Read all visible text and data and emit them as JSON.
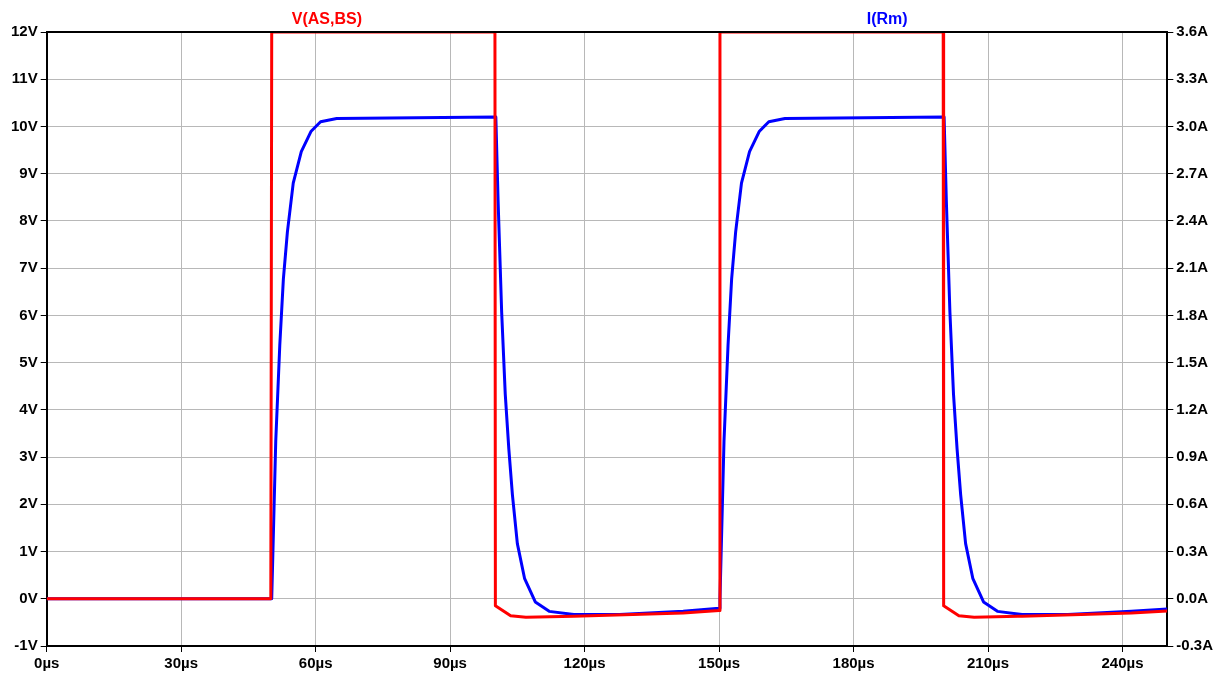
{
  "chart_data": {
    "type": "line",
    "legend": "top",
    "grid": true,
    "marker": "none",
    "line_style": "solid",
    "xlim": [
      0,
      250
    ],
    "xticks": [
      {
        "value": 0,
        "label": "0µs"
      },
      {
        "value": 30,
        "label": "30µs"
      },
      {
        "value": 60,
        "label": "60µs"
      },
      {
        "value": 90,
        "label": "90µs"
      },
      {
        "value": 120,
        "label": "120µs"
      },
      {
        "value": 150,
        "label": "150µs"
      },
      {
        "value": 180,
        "label": "180µs"
      },
      {
        "value": 210,
        "label": "210µs"
      },
      {
        "value": 240,
        "label": "240µs"
      }
    ],
    "ylim": [
      -1,
      12
    ],
    "yticks": [
      {
        "value": -1,
        "label": "-1V"
      },
      {
        "value": 0,
        "label": "0V"
      },
      {
        "value": 1,
        "label": "1V"
      },
      {
        "value": 2,
        "label": "2V"
      },
      {
        "value": 3,
        "label": "3V"
      },
      {
        "value": 4,
        "label": "4V"
      },
      {
        "value": 5,
        "label": "5V"
      },
      {
        "value": 6,
        "label": "6V"
      },
      {
        "value": 7,
        "label": "7V"
      },
      {
        "value": 8,
        "label": "8V"
      },
      {
        "value": 9,
        "label": "9V"
      },
      {
        "value": 10,
        "label": "10V"
      },
      {
        "value": 11,
        "label": "11V"
      },
      {
        "value": 12,
        "label": "12V"
      }
    ],
    "y2lim": [
      -0.3,
      3.6
    ],
    "y2ticks": [
      {
        "value": -0.3,
        "label": "-0.3A"
      },
      {
        "value": 0,
        "label": "0.0A"
      },
      {
        "value": 0.3,
        "label": "0.3A"
      },
      {
        "value": 0.6,
        "label": "0.6A"
      },
      {
        "value": 0.9,
        "label": "0.9A"
      },
      {
        "value": 1.2,
        "label": "1.2A"
      },
      {
        "value": 1.5,
        "label": "1.5A"
      },
      {
        "value": 1.8,
        "label": "1.8A"
      },
      {
        "value": 2.1,
        "label": "2.1A"
      },
      {
        "value": 2.4,
        "label": "2.4A"
      },
      {
        "value": 2.7,
        "label": "2.7A"
      },
      {
        "value": 3.0,
        "label": "3.0A"
      },
      {
        "value": 3.3,
        "label": "3.3A"
      },
      {
        "value": 3.6,
        "label": "3.6A"
      }
    ],
    "series": [
      {
        "name": "V(AS,BS)",
        "color": "#ff0000",
        "x": [
          0,
          50,
          50.2,
          100,
          100.1,
          103.5,
          106.9,
          117.6,
          142,
          150,
          150.2,
          200,
          200.1,
          203.5,
          206.9,
          217.6,
          242,
          250
        ],
        "values": [
          0,
          0,
          12,
          12,
          -0.15,
          -0.36,
          -0.39,
          -0.37,
          -0.3,
          -0.25,
          12,
          12,
          -0.15,
          -0.36,
          -0.39,
          -0.37,
          -0.3,
          -0.26
        ]
      },
      {
        "name": "I(Rm)",
        "color": "#0000ff",
        "axis": "y2",
        "x": [
          0,
          50.2,
          51.1,
          52.0,
          52.8,
          53.7,
          55.0,
          56.8,
          59.0,
          61.1,
          64.7,
          100.2,
          100.7,
          101.5,
          102.3,
          103.1,
          103.9,
          105.0,
          106.6,
          109.0,
          112.1,
          117.6,
          127.8,
          142,
          150,
          150.2,
          151.1,
          152.0,
          152.8,
          153.7,
          155.0,
          156.8,
          159.0,
          161.1,
          164.7,
          200.2,
          200.7,
          201.5,
          202.3,
          203.1,
          203.9,
          205.0,
          206.6,
          209.0,
          212.1,
          217.6,
          227.8,
          242,
          250
        ],
        "values": [
          0,
          0,
          1.0,
          1.61,
          2.03,
          2.33,
          2.64,
          2.84,
          2.97,
          3.03,
          3.05,
          3.06,
          2.53,
          1.82,
          1.3,
          0.95,
          0.66,
          0.35,
          0.13,
          -0.02,
          -0.08,
          -0.1,
          -0.1,
          -0.08,
          -0.06,
          0,
          1.0,
          1.61,
          2.03,
          2.33,
          2.64,
          2.84,
          2.97,
          3.03,
          3.05,
          3.06,
          2.53,
          1.82,
          1.3,
          0.95,
          0.66,
          0.35,
          0.13,
          -0.02,
          -0.08,
          -0.1,
          -0.1,
          -0.08,
          -0.065
        ]
      }
    ]
  }
}
